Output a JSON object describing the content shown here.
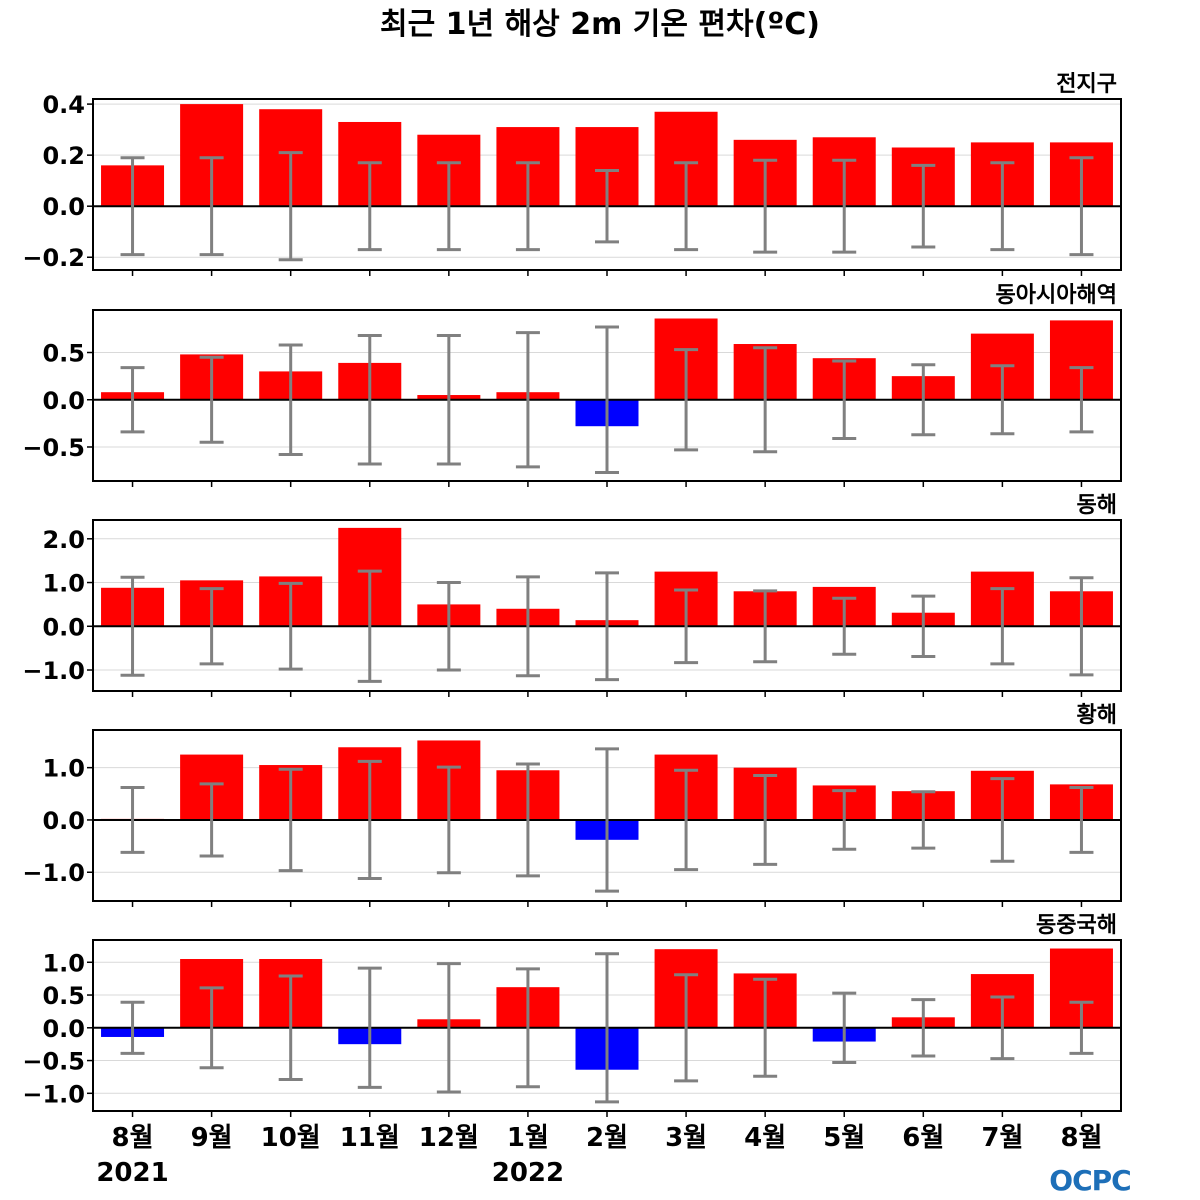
{
  "title": "최근 1년 해상 2m 기온 편차(ºC)",
  "logo": "OCPC",
  "colors": {
    "positive": "#ff0000",
    "negative": "#0000ff",
    "errorbar": "#808080",
    "grid": "#d9d9d9",
    "zero_line": "#000000",
    "logo": "#1d6fb8"
  },
  "x_labels": [
    "8월",
    "9월",
    "10월",
    "11월",
    "12월",
    "1월",
    "2월",
    "3월",
    "4월",
    "5월",
    "6월",
    "7월",
    "8월"
  ],
  "year_labels": [
    {
      "index": 0,
      "label": "2021"
    },
    {
      "index": 5,
      "label": "2022"
    }
  ],
  "chart_data": [
    {
      "type": "bar",
      "title": "전지구",
      "categories": [
        "8월",
        "9월",
        "10월",
        "11월",
        "12월",
        "1월",
        "2월",
        "3월",
        "4월",
        "5월",
        "6월",
        "7월",
        "8월"
      ],
      "values": [
        0.16,
        0.4,
        0.38,
        0.33,
        0.28,
        0.31,
        0.31,
        0.37,
        0.26,
        0.27,
        0.23,
        0.25,
        0.25
      ],
      "error": [
        0.19,
        0.19,
        0.21,
        0.17,
        0.17,
        0.17,
        0.14,
        0.17,
        0.18,
        0.18,
        0.16,
        0.17,
        0.19
      ],
      "ylim": [
        -0.25,
        0.42
      ],
      "yticks": [
        -0.2,
        0.0,
        0.2,
        0.4
      ],
      "ytick_labels": [
        "−0.2",
        "0.0",
        "0.2",
        "0.4"
      ],
      "grid": true
    },
    {
      "type": "bar",
      "title": "동아시아해역",
      "categories": [
        "8월",
        "9월",
        "10월",
        "11월",
        "12월",
        "1월",
        "2월",
        "3월",
        "4월",
        "5월",
        "6월",
        "7월",
        "8월"
      ],
      "values": [
        0.08,
        0.48,
        0.3,
        0.39,
        0.05,
        0.08,
        -0.28,
        0.86,
        0.59,
        0.44,
        0.25,
        0.7,
        0.84
      ],
      "error": [
        0.34,
        0.45,
        0.58,
        0.68,
        0.68,
        0.71,
        0.77,
        0.53,
        0.55,
        0.41,
        0.37,
        0.36,
        0.34
      ],
      "ylim": [
        -0.86,
        0.95
      ],
      "yticks": [
        -0.5,
        0.0,
        0.5
      ],
      "ytick_labels": [
        "−0.5",
        "0.0",
        "0.5"
      ],
      "grid": true
    },
    {
      "type": "bar",
      "title": "동해",
      "categories": [
        "8월",
        "9월",
        "10월",
        "11월",
        "12월",
        "1월",
        "2월",
        "3월",
        "4월",
        "5월",
        "6월",
        "7월",
        "8월"
      ],
      "values": [
        0.88,
        1.05,
        1.14,
        2.25,
        0.5,
        0.4,
        0.14,
        1.25,
        0.8,
        0.9,
        0.31,
        1.25,
        0.8
      ],
      "error": [
        1.12,
        0.86,
        0.98,
        1.26,
        1.0,
        1.13,
        1.22,
        0.83,
        0.81,
        0.64,
        0.69,
        0.86,
        1.11
      ],
      "ylim": [
        -1.48,
        2.43
      ],
      "yticks": [
        -1.0,
        0.0,
        1.0,
        2.0
      ],
      "ytick_labels": [
        "−1.0",
        "0.0",
        "1.0",
        "2.0"
      ],
      "grid": true
    },
    {
      "type": "bar",
      "title": "황해",
      "categories": [
        "8월",
        "9월",
        "10월",
        "11월",
        "12월",
        "1월",
        "2월",
        "3월",
        "4월",
        "5월",
        "6월",
        "7월",
        "8월"
      ],
      "values": [
        0.02,
        1.25,
        1.05,
        1.39,
        1.52,
        0.95,
        -0.38,
        1.25,
        1.0,
        0.66,
        0.55,
        0.94,
        0.68
      ],
      "error": [
        0.62,
        0.69,
        0.97,
        1.12,
        1.01,
        1.07,
        1.36,
        0.95,
        0.85,
        0.56,
        0.54,
        0.79,
        0.62
      ],
      "ylim": [
        -1.55,
        1.72
      ],
      "yticks": [
        -1.0,
        0.0,
        1.0
      ],
      "ytick_labels": [
        "−1.0",
        "0.0",
        "1.0"
      ],
      "grid": true
    },
    {
      "type": "bar",
      "title": "동중국해",
      "categories": [
        "8월",
        "9월",
        "10월",
        "11월",
        "12월",
        "1월",
        "2월",
        "3월",
        "4월",
        "5월",
        "6월",
        "7월",
        "8월"
      ],
      "values": [
        -0.14,
        1.05,
        1.05,
        -0.25,
        0.13,
        0.62,
        -0.64,
        1.2,
        0.83,
        -0.21,
        0.16,
        0.82,
        1.21
      ],
      "error": [
        0.39,
        0.61,
        0.79,
        0.91,
        0.98,
        0.9,
        1.13,
        0.81,
        0.74,
        0.53,
        0.43,
        0.47,
        0.39
      ],
      "ylim": [
        -1.27,
        1.34
      ],
      "yticks": [
        -1.0,
        -0.5,
        0.0,
        0.5,
        1.0
      ],
      "ytick_labels": [
        "−1.0",
        "−0.5",
        "0.0",
        "0.5",
        "1.0"
      ],
      "grid": true
    }
  ]
}
